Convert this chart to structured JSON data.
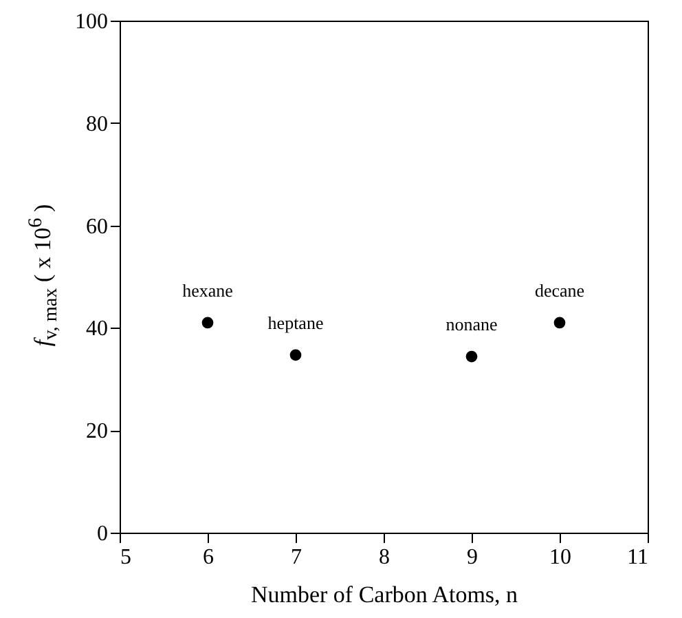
{
  "chart_data": {
    "type": "scatter",
    "xlabel": "Number of Carbon Atoms, n",
    "ylabel": "f$_{v, max}$ ( x 10$^{6}$ )",
    "x": [
      6,
      7,
      9,
      10
    ],
    "series": [
      {
        "color": "#000000",
        "values": [
          41,
          34.7,
          34.4,
          41
        ]
      }
    ],
    "marker": "circle",
    "xlim": [
      5,
      11
    ],
    "xticks": [
      5,
      6,
      7,
      8,
      9,
      10,
      11
    ],
    "ylim": [
      0,
      100
    ],
    "yticks": [
      0,
      20,
      40,
      60,
      80,
      100
    ],
    "annotations": [
      {
        "text": "hexane",
        "x": 6,
        "y": 41
      },
      {
        "text": "heptane",
        "x": 7,
        "y": 34.7
      },
      {
        "text": "nonane",
        "x": 9,
        "y": 34.4
      },
      {
        "text": "decane",
        "x": 10,
        "y": 41
      }
    ]
  }
}
